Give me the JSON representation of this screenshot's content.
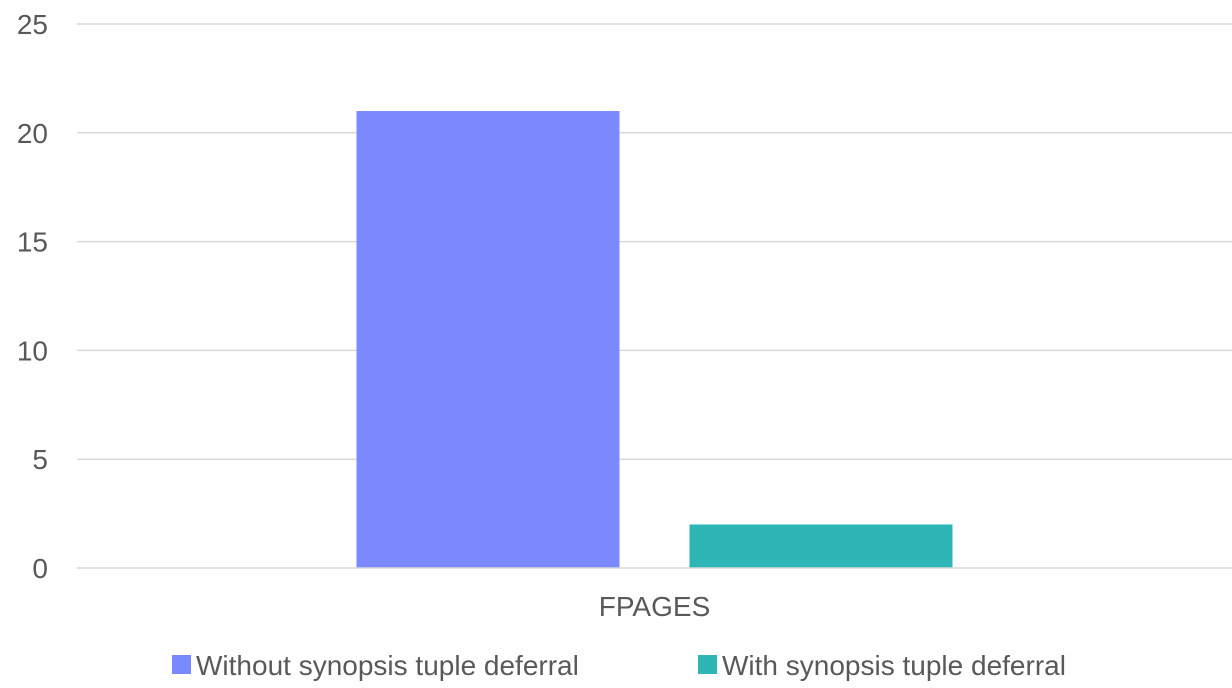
{
  "chart_data": {
    "type": "bar",
    "title": "",
    "xlabel": "",
    "ylabel": "",
    "categories": [
      "FPAGES"
    ],
    "ylim": [
      0,
      25
    ],
    "yticks": [
      0,
      5,
      10,
      15,
      20,
      25
    ],
    "grid": true,
    "legend_position": "bottom",
    "series": [
      {
        "name": "Without synopsis tuple deferral",
        "values": [
          21
        ],
        "color": "#7a89fd"
      },
      {
        "name": "With synopsis tuple deferral",
        "values": [
          2
        ],
        "color": "#2eb6b6"
      }
    ]
  }
}
